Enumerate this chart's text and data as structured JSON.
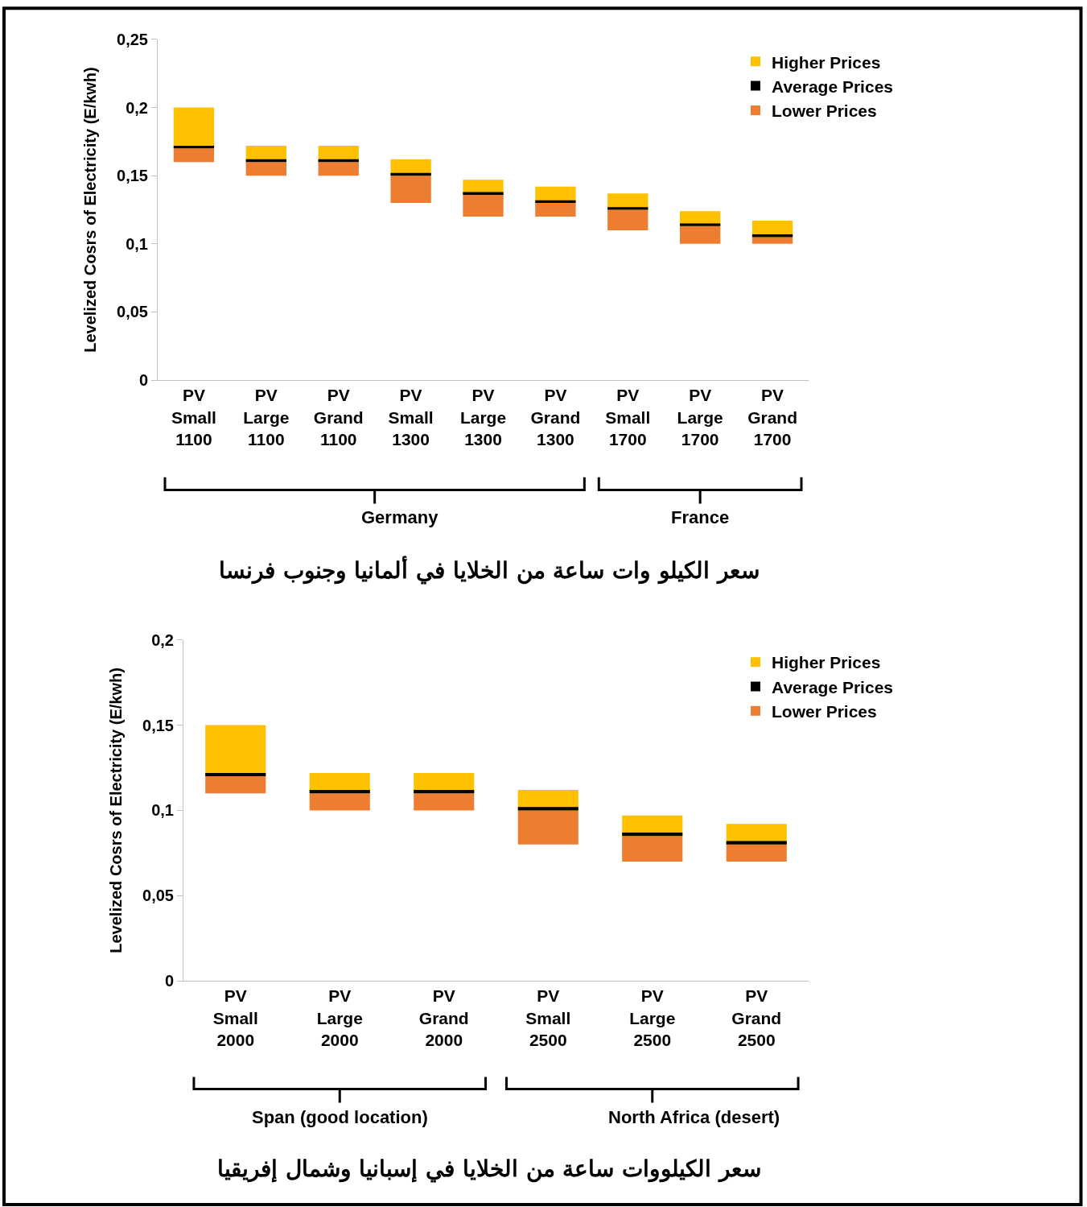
{
  "chart_data": [
    {
      "type": "bar",
      "title": "سعر الكيلو وات ساعة من الخلايا في ألمانيا وجنوب فرنسا",
      "ylabel": "Levelized Cosrs of Electricity (E/kwh)",
      "categories": [
        "PV\nSmall\n1100",
        "PV\nLarge\n1100",
        "PV\nGrand\n1100",
        "PV\nSmall\n1300",
        "PV\nLarge\n1300",
        "PV\nGrand\n1300",
        "PV\nSmall\n1700",
        "PV\nLarge\n1700",
        "PV\nGrand\n1700"
      ],
      "series": [
        {
          "name": "Lower Prices",
          "color": "#ed7d31",
          "base": [
            0.16,
            0.15,
            0.15,
            0.13,
            0.12,
            0.12,
            0.11,
            0.1,
            0.1
          ],
          "values": [
            0.01,
            0.01,
            0.01,
            0.02,
            0.016,
            0.01,
            0.015,
            0.013,
            0.005
          ]
        },
        {
          "name": "Higher Prices",
          "color": "#ffc000",
          "base": [
            0.17,
            0.16,
            0.16,
            0.15,
            0.136,
            0.13,
            0.125,
            0.113,
            0.105
          ],
          "values": [
            0.03,
            0.012,
            0.012,
            0.012,
            0.011,
            0.012,
            0.012,
            0.011,
            0.012
          ]
        },
        {
          "name": "Average Prices",
          "color": "#000000",
          "base": [
            0.17,
            0.16,
            0.16,
            0.15,
            0.136,
            0.13,
            0.125,
            0.113,
            0.105
          ],
          "values": [
            0.002,
            0.002,
            0.002,
            0.002,
            0.002,
            0.002,
            0.002,
            0.002,
            0.002
          ]
        }
      ],
      "ylim": [
        0,
        0.25
      ],
      "yticks": [
        0,
        {
          "value": 0.05,
          "label": "0,05"
        },
        {
          "value": 0.1,
          "label": "0,1"
        },
        {
          "value": 0.15,
          "label": "0,15"
        },
        {
          "value": 0.2,
          "label": "0,2"
        },
        {
          "value": 0.25,
          "label": "0,25"
        }
      ],
      "annotations": [
        "Germany",
        "France"
      ],
      "legend": "top right"
    },
    {
      "type": "bar",
      "title": "سعر الكيلووات ساعة من الخلايا في إسبانيا وشمال إفريقيا",
      "ylabel": "Levelized Cosrs of Electricity (E/kwh)",
      "categories": [
        "PV\nSmall\n2000",
        "PV\nLarge\n2000",
        "PV\nGrand\n2000",
        "PV\nSmall\n2500",
        "PV\nLarge\n2500",
        "PV\nGrand\n2500"
      ],
      "series": [
        {
          "name": "Lower Prices",
          "color": "#ed7d31",
          "base": [
            0.11,
            0.1,
            0.1,
            0.08,
            0.07,
            0.07
          ],
          "values": [
            0.01,
            0.01,
            0.01,
            0.02,
            0.015,
            0.01
          ]
        },
        {
          "name": "Higher Prices",
          "color": "#ffc000",
          "base": [
            0.12,
            0.11,
            0.11,
            0.1,
            0.085,
            0.08
          ],
          "values": [
            0.03,
            0.012,
            0.012,
            0.012,
            0.012,
            0.012
          ]
        },
        {
          "name": "Average Prices",
          "color": "#000000",
          "base": [
            0.12,
            0.11,
            0.11,
            0.1,
            0.085,
            0.08
          ],
          "values": [
            0.002,
            0.002,
            0.002,
            0.002,
            0.002,
            0.002
          ]
        }
      ],
      "ylim": [
        0,
        0.2
      ],
      "yticks": [
        0,
        {
          "value": 0.05,
          "label": "0,05"
        },
        {
          "value": 0.1,
          "label": "0,1"
        },
        {
          "value": 0.15,
          "label": "0,15"
        },
        {
          "value": 0.2,
          "label": "0,2"
        }
      ],
      "annotations": [
        "Span (good location)",
        "North Africa (desert)"
      ],
      "legend": "top right"
    }
  ]
}
